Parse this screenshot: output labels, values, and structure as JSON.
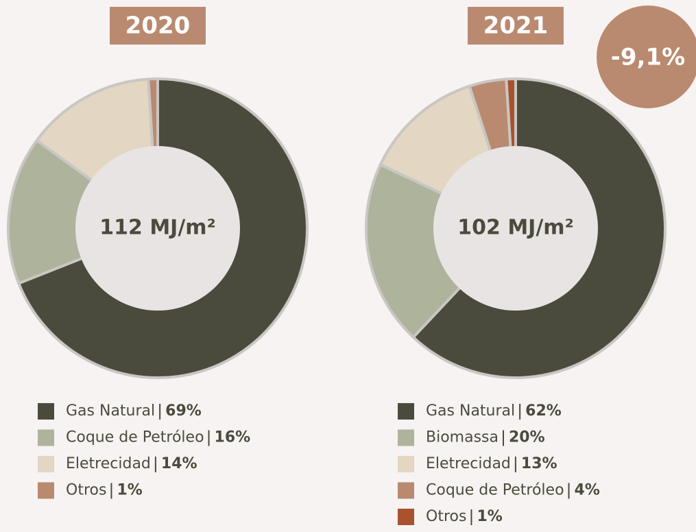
{
  "chart_data": [
    {
      "type": "pie",
      "title": "2020",
      "center_label": "112 MJ/m²",
      "categories": [
        "Gas Natural",
        "Coque de Petróleo",
        "Eletrecidad",
        "Otros"
      ],
      "values": [
        69,
        16,
        14,
        1
      ],
      "value_labels": [
        "69%",
        "16%",
        "14%",
        "1%"
      ],
      "colors": [
        "#4a4b3c",
        "#aeb39c",
        "#e3d6c2",
        "#b98a70"
      ]
    },
    {
      "type": "pie",
      "title": "2021",
      "center_label": "102 MJ/m²",
      "annotation": "-9,1%",
      "categories": [
        "Gas Natural",
        "Biomassa",
        "Eletrecidad",
        "Coque de Petróleo",
        "Otros"
      ],
      "values": [
        62,
        20,
        13,
        4,
        1
      ],
      "value_labels": [
        "62%",
        "20%",
        "13%",
        "4%",
        "1%"
      ],
      "colors": [
        "#4a4b3c",
        "#aeb39c",
        "#e3d6c2",
        "#b98a70",
        "#a8522e"
      ]
    }
  ]
}
